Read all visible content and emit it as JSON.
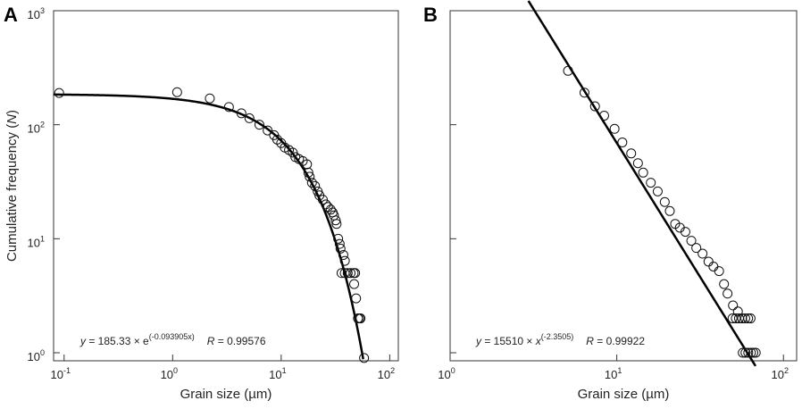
{
  "chart_data": [
    {
      "panel_label": "A",
      "type": "scatter",
      "x_scale": "log",
      "y_scale": "log",
      "xlim": [
        0.08,
        120
      ],
      "ylim": [
        0.85,
        1000
      ],
      "xlabel": "Grain size (µm)",
      "ylabel": "Cumulative frequency (N)",
      "ylabel_parts": [
        "Cumulative frequency (",
        "N",
        ")"
      ],
      "x_ticks": [
        {
          "value": 0.1,
          "base": "10",
          "exp": "-1"
        },
        {
          "value": 1,
          "base": "10",
          "exp": "0"
        },
        {
          "value": 10,
          "base": "10",
          "exp": "1"
        },
        {
          "value": 100,
          "base": "10",
          "exp": "2"
        }
      ],
      "y_ticks": [
        {
          "value": 1,
          "base": "10",
          "exp": "0"
        },
        {
          "value": 10,
          "base": "10",
          "exp": "1"
        },
        {
          "value": 100,
          "base": "10",
          "exp": "2"
        },
        {
          "value": 1000,
          "base": "10",
          "exp": "3"
        }
      ],
      "fit": {
        "model": "exponential",
        "a": 185.33,
        "b": -0.093905,
        "x_range": [
          0.08,
          57
        ]
      },
      "equation": {
        "prefix": "y",
        "middle": " = 185.33 × e",
        "exponent": "(-0.093905x)",
        "r_label": "R",
        "r_value": " = 0.99576"
      },
      "points": [
        [
          0.09,
          190
        ],
        [
          1.1,
          193
        ],
        [
          2.2,
          170
        ],
        [
          3.3,
          143
        ],
        [
          4.3,
          126
        ],
        [
          5.1,
          114
        ],
        [
          6.3,
          100
        ],
        [
          7.5,
          89
        ],
        [
          8.6,
          81
        ],
        [
          9.2,
          74
        ],
        [
          10.0,
          69
        ],
        [
          10.8,
          63
        ],
        [
          11.8,
          60
        ],
        [
          12.8,
          57
        ],
        [
          13.5,
          52
        ],
        [
          14.6,
          50
        ],
        [
          15.8,
          48
        ],
        [
          17.3,
          45
        ],
        [
          17.8,
          38
        ],
        [
          18.3,
          35
        ],
        [
          19.2,
          31
        ],
        [
          20.5,
          29
        ],
        [
          21.7,
          26
        ],
        [
          22.5,
          24
        ],
        [
          24.2,
          22
        ],
        [
          25.8,
          20
        ],
        [
          27.0,
          19
        ],
        [
          28.6,
          18
        ],
        [
          29.8,
          17
        ],
        [
          30.6,
          16
        ],
        [
          31.8,
          14.5
        ],
        [
          32.4,
          13.5
        ],
        [
          33.5,
          10
        ],
        [
          34.6,
          9
        ],
        [
          35.2,
          8.2
        ],
        [
          37.4,
          7.2
        ],
        [
          38.6,
          6.4
        ],
        [
          36.0,
          5
        ],
        [
          38.5,
          5
        ],
        [
          41.0,
          5
        ],
        [
          43.6,
          5
        ],
        [
          46.5,
          5
        ],
        [
          48.0,
          5
        ],
        [
          47.0,
          4
        ],
        [
          49.0,
          3
        ],
        [
          51.0,
          2
        ],
        [
          52.5,
          2
        ],
        [
          53.8,
          2
        ],
        [
          58.0,
          0.9
        ]
      ]
    },
    {
      "panel_label": "B",
      "type": "scatter",
      "x_scale": "log",
      "y_scale": "log",
      "xlim": [
        1,
        120
      ],
      "ylim": [
        0.85,
        1000
      ],
      "xlabel": "Grain size (µm)",
      "x_ticks": [
        {
          "value": 1,
          "base": "10",
          "exp": "0"
        },
        {
          "value": 10,
          "base": "10",
          "exp": "1"
        },
        {
          "value": 100,
          "base": "10",
          "exp": "2"
        }
      ],
      "y_ticks": [
        1,
        10,
        100,
        1000
      ],
      "fit": {
        "model": "power",
        "a": 15510,
        "b": -2.3505,
        "x_range": [
          2.95,
          68
        ]
      },
      "equation": {
        "prefix": "y",
        "middle": " = 15510 × ",
        "base": "x",
        "exponent": "(-2.3505)",
        "r_label": "R",
        "r_value": " = 0.99922"
      },
      "points": [
        [
          5.1,
          297
        ],
        [
          6.4,
          191
        ],
        [
          7.4,
          145
        ],
        [
          8.4,
          120
        ],
        [
          9.7,
          92
        ],
        [
          10.8,
          70
        ],
        [
          12.2,
          56
        ],
        [
          13.4,
          46
        ],
        [
          14.4,
          38
        ],
        [
          16.0,
          31
        ],
        [
          17.6,
          26
        ],
        [
          19.4,
          21
        ],
        [
          20.8,
          17.5
        ],
        [
          22.4,
          13.5
        ],
        [
          23.9,
          12.5
        ],
        [
          25.8,
          11.5
        ],
        [
          28.0,
          9.6
        ],
        [
          30.0,
          8.3
        ],
        [
          32.7,
          7.4
        ],
        [
          35.5,
          6.3
        ],
        [
          38.0,
          5.7
        ],
        [
          41.1,
          5.2
        ],
        [
          44.0,
          4.0
        ],
        [
          46.2,
          3.3
        ],
        [
          49.8,
          2.6
        ],
        [
          53.3,
          2.3
        ],
        [
          49.5,
          2
        ],
        [
          51.8,
          2
        ],
        [
          54.1,
          2
        ],
        [
          56.5,
          2
        ],
        [
          59.0,
          2
        ],
        [
          61.4,
          2
        ],
        [
          63.5,
          2
        ],
        [
          57.0,
          1
        ],
        [
          59.2,
          1
        ],
        [
          61.5,
          1
        ],
        [
          63.8,
          1
        ],
        [
          66.0,
          1
        ],
        [
          68.2,
          1
        ]
      ]
    }
  ]
}
